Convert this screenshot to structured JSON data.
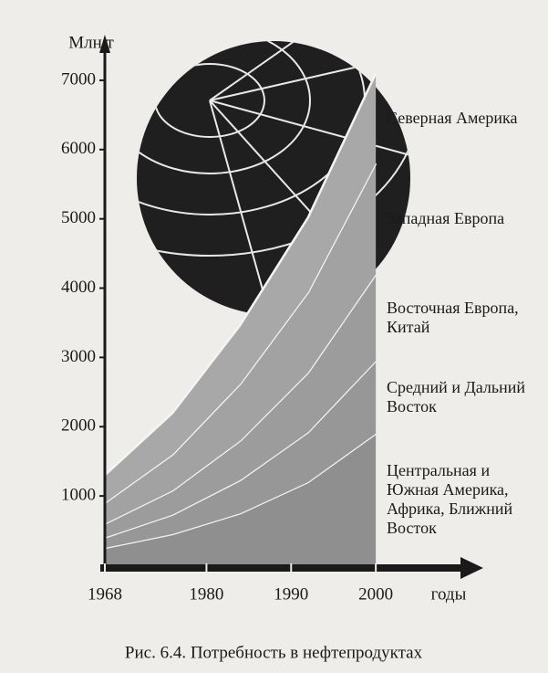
{
  "chart_data": {
    "type": "stacked_area",
    "y_label": "Млн.т",
    "x_label": "годы",
    "caption": "Рис. 6.4. Потребность в нефтепродуктах",
    "x": [
      1968,
      1976,
      1984,
      1992,
      2000
    ],
    "xlim": [
      1968,
      2010
    ],
    "xticks": [
      1968,
      1980,
      1990,
      2000
    ],
    "ylim": [
      0,
      7500
    ],
    "yticks": [
      1000,
      2000,
      3000,
      4000,
      5000,
      6000,
      7000
    ],
    "series": [
      {
        "name": "Центральная и Южная Америка, Африка, Ближний Восток",
        "color": "#8f8f8f",
        "values": [
          250,
          450,
          750,
          1200,
          1900
        ]
      },
      {
        "name": "Средний и Дальний Восток",
        "color": "#979797",
        "values": [
          150,
          280,
          480,
          720,
          1050
        ]
      },
      {
        "name": "Восточная Европа, Китай",
        "color": "#9c9c9c",
        "values": [
          200,
          350,
          570,
          860,
          1250
        ]
      },
      {
        "name": "Западная Европа",
        "color": "#a2a2a2",
        "values": [
          300,
          520,
          820,
          1160,
          1600
        ]
      },
      {
        "name": "Северная Америка",
        "color": "#a8a8a8",
        "values": [
          400,
          600,
          850,
          1080,
          1300
        ]
      }
    ]
  }
}
